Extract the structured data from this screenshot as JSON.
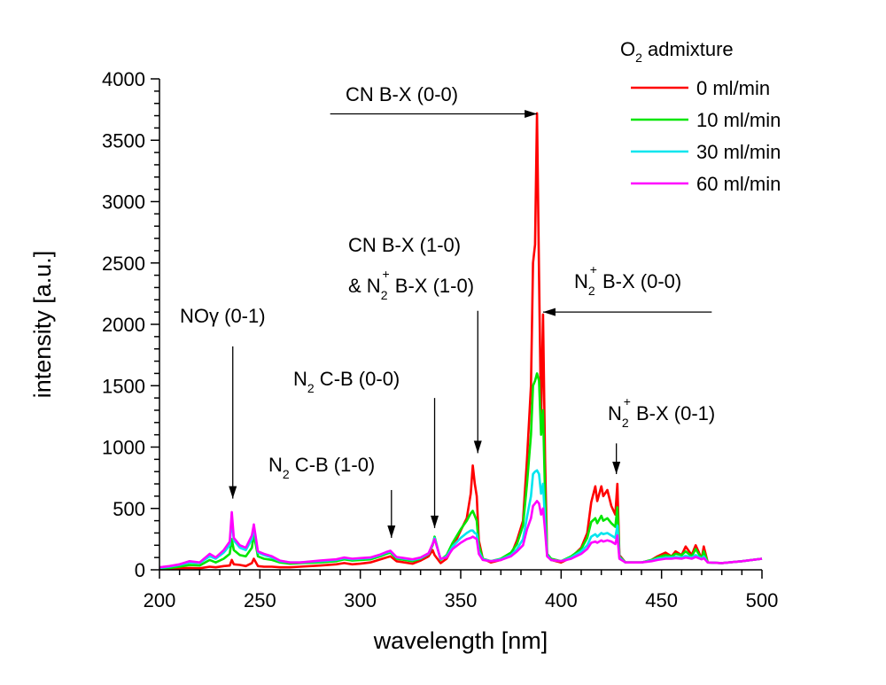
{
  "chart_data": {
    "type": "line",
    "title": "",
    "xlabel": "wavelength [nm]",
    "ylabel": "intensity [a.u.]",
    "xlim": [
      200,
      500
    ],
    "ylim": [
      0,
      4000
    ],
    "xticks": [
      200,
      250,
      300,
      350,
      400,
      450,
      500
    ],
    "xtick_labels": [
      "200",
      "250",
      "300",
      "350",
      "400",
      "450",
      "500"
    ],
    "yticks": [
      0,
      500,
      1000,
      1500,
      2000,
      2500,
      3000,
      3500,
      4000
    ],
    "ytick_labels": [
      "0",
      "500",
      "1000",
      "1500",
      "2000",
      "2500",
      "3000",
      "3500",
      "4000"
    ],
    "x_minor_step": 10,
    "y_minor_step": 100,
    "grid": false,
    "legend": {
      "title_main": "O",
      "title_sub": "2",
      "title_rest": " admixture",
      "placement": "top-right"
    },
    "x": [
      200,
      205,
      210,
      215,
      220,
      225,
      228,
      232,
      235,
      236,
      237,
      240,
      243,
      246,
      247,
      249,
      252,
      256,
      260,
      265,
      270,
      280,
      288,
      292,
      296,
      300,
      305,
      310,
      313,
      315,
      318,
      322,
      326,
      330,
      334,
      336,
      337,
      340,
      343,
      346,
      350,
      353,
      355,
      356,
      357,
      358,
      359,
      361,
      365,
      370,
      375,
      378,
      381,
      383,
      385,
      386,
      387,
      388,
      389,
      390,
      391,
      392,
      393,
      395,
      400,
      405,
      410,
      413,
      415,
      417,
      418,
      420,
      421,
      423,
      425,
      427,
      428,
      429,
      432,
      440,
      445,
      448,
      452,
      455,
      457,
      460,
      462,
      465,
      467,
      470,
      471,
      473,
      480,
      490,
      500
    ],
    "series": [
      {
        "name": "0 ml/min",
        "color": "#ff0000",
        "values": [
          5,
          8,
          12,
          15,
          12,
          25,
          20,
          30,
          35,
          80,
          45,
          40,
          30,
          55,
          90,
          30,
          25,
          25,
          20,
          20,
          25,
          35,
          45,
          55,
          45,
          50,
          60,
          85,
          100,
          110,
          70,
          60,
          50,
          75,
          110,
          160,
          120,
          55,
          90,
          180,
          320,
          420,
          620,
          850,
          700,
          600,
          240,
          90,
          60,
          80,
          120,
          240,
          400,
          900,
          1500,
          2500,
          2650,
          3720,
          2400,
          1200,
          2080,
          900,
          120,
          80,
          60,
          100,
          180,
          300,
          550,
          680,
          560,
          680,
          600,
          650,
          520,
          450,
          700,
          120,
          60,
          60,
          80,
          110,
          140,
          110,
          150,
          120,
          190,
          120,
          200,
          90,
          190,
          60,
          55,
          70,
          90
        ]
      },
      {
        "name": "10 ml/min",
        "color": "#00e600",
        "values": [
          10,
          15,
          25,
          40,
          35,
          80,
          60,
          90,
          130,
          250,
          160,
          120,
          110,
          180,
          290,
          110,
          90,
          80,
          60,
          50,
          55,
          60,
          70,
          85,
          75,
          80,
          85,
          110,
          130,
          140,
          90,
          80,
          70,
          90,
          130,
          200,
          270,
          80,
          120,
          220,
          330,
          400,
          460,
          480,
          440,
          400,
          200,
          90,
          70,
          90,
          140,
          210,
          360,
          700,
          1100,
          1500,
          1540,
          1600,
          1540,
          1100,
          1300,
          600,
          130,
          90,
          70,
          110,
          170,
          260,
          390,
          420,
          380,
          440,
          400,
          420,
          380,
          350,
          510,
          110,
          60,
          60,
          80,
          100,
          120,
          110,
          130,
          120,
          150,
          110,
          170,
          90,
          150,
          60,
          55,
          70,
          90
        ]
      },
      {
        "name": "30 ml/min",
        "color": "#00e5ee",
        "values": [
          15,
          25,
          40,
          60,
          55,
          110,
          90,
          140,
          200,
          420,
          240,
          180,
          160,
          250,
          340,
          140,
          120,
          100,
          70,
          60,
          60,
          70,
          80,
          95,
          85,
          90,
          95,
          120,
          140,
          150,
          100,
          90,
          80,
          95,
          130,
          210,
          260,
          85,
          110,
          190,
          260,
          300,
          320,
          320,
          300,
          290,
          150,
          85,
          70,
          85,
          120,
          170,
          250,
          430,
          600,
          780,
          800,
          810,
          780,
          620,
          700,
          400,
          120,
          80,
          70,
          100,
          150,
          200,
          270,
          290,
          270,
          300,
          290,
          300,
          280,
          260,
          360,
          100,
          60,
          60,
          75,
          90,
          100,
          100,
          105,
          100,
          115,
          100,
          120,
          90,
          110,
          60,
          55,
          70,
          90
        ]
      },
      {
        "name": "60 ml/min",
        "color": "#ff00ff",
        "values": [
          20,
          30,
          45,
          70,
          60,
          130,
          100,
          160,
          230,
          470,
          260,
          200,
          180,
          280,
          370,
          150,
          130,
          110,
          75,
          60,
          60,
          75,
          85,
          100,
          90,
          95,
          100,
          125,
          145,
          155,
          105,
          95,
          85,
          100,
          135,
          210,
          250,
          90,
          100,
          170,
          220,
          250,
          260,
          270,
          260,
          250,
          130,
          80,
          70,
          80,
          110,
          150,
          200,
          330,
          420,
          520,
          540,
          560,
          540,
          450,
          500,
          320,
          110,
          80,
          70,
          90,
          130,
          170,
          220,
          230,
          220,
          240,
          230,
          240,
          230,
          210,
          280,
          90,
          60,
          60,
          70,
          80,
          90,
          90,
          95,
          90,
          100,
          90,
          105,
          85,
          95,
          60,
          55,
          70,
          90
        ]
      }
    ],
    "annotations": [
      {
        "id": "cn-00",
        "parts": [
          {
            "t": "CN B-X (0-0)"
          }
        ]
      },
      {
        "id": "cn-10",
        "parts": [
          {
            "t": "CN B-X (1-0)"
          }
        ]
      },
      {
        "id": "n2p-10",
        "parts": [
          {
            "t": "& N"
          },
          {
            "t": "2",
            "sub": true
          },
          {
            "t": "+",
            "sup": true
          },
          {
            "t": " B-X (1-0)"
          }
        ]
      },
      {
        "id": "n2p-00",
        "parts": [
          {
            "t": "N"
          },
          {
            "t": "2",
            "sub": true
          },
          {
            "t": "+",
            "sup": true
          },
          {
            "t": " B-X (0-0)"
          }
        ]
      },
      {
        "id": "no-gamma",
        "parts": [
          {
            "t": "NO"
          },
          {
            "t": "γ",
            "greek": true
          },
          {
            "t": " (0-1)"
          }
        ]
      },
      {
        "id": "n2-cb-00",
        "parts": [
          {
            "t": "N"
          },
          {
            "t": "2",
            "sub": true
          },
          {
            "t": " C-B (0-0)"
          }
        ]
      },
      {
        "id": "n2-cb-10",
        "parts": [
          {
            "t": "N"
          },
          {
            "t": "2",
            "sub": true
          },
          {
            "t": " C-B (1-0)"
          }
        ]
      },
      {
        "id": "n2p-01",
        "parts": [
          {
            "t": "N"
          },
          {
            "t": "2",
            "sub": true
          },
          {
            "t": "+",
            "sup": true
          },
          {
            "t": " B-X (0-1)"
          }
        ]
      }
    ],
    "arrows": [
      {
        "id": "cn-00",
        "from": [
          285,
          3715
        ],
        "to": [
          388,
          3715
        ]
      },
      {
        "id": "n2p-00",
        "from": [
          475,
          2100
        ],
        "to": [
          391,
          2100
        ]
      },
      {
        "id": "cn-10",
        "from": [
          358.5,
          2110
        ],
        "to": [
          358.5,
          950
        ]
      },
      {
        "id": "no-gamma",
        "from": [
          236.5,
          1820
        ],
        "to": [
          236.5,
          580
        ]
      },
      {
        "id": "n2-cb-00",
        "from": [
          337,
          1400
        ],
        "to": [
          337,
          340
        ]
      },
      {
        "id": "n2-cb-10",
        "from": [
          315.5,
          650
        ],
        "to": [
          315.5,
          260
        ]
      },
      {
        "id": "n2p-01",
        "from": [
          427.5,
          1030
        ],
        "to": [
          427.5,
          780
        ]
      }
    ]
  }
}
